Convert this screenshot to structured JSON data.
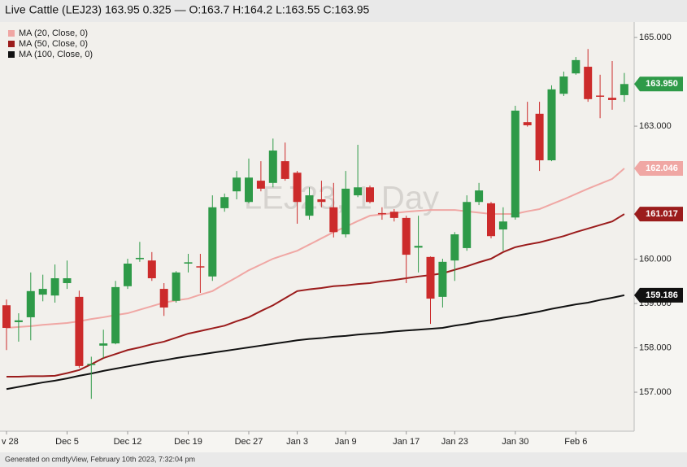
{
  "chart_data": {
    "type": "candlestick",
    "title": "Live Cattle (LEJ23) 163.95 0.325 — O:163.7 H:164.2 L:163.55 C:163.95",
    "watermark": "LEJ23, 1 Day",
    "footer": "Generated on cmdtyView, February 10th 2023, 7:32:04 pm",
    "categories": [
      "v 28",
      null,
      null,
      null,
      null,
      "Dec 5",
      null,
      null,
      null,
      null,
      "Dec 12",
      null,
      null,
      null,
      null,
      "Dec 19",
      null,
      null,
      null,
      null,
      "Dec 27",
      null,
      null,
      null,
      "Jan 3",
      null,
      null,
      null,
      "Jan 9",
      null,
      null,
      null,
      null,
      "Jan 17",
      null,
      null,
      null,
      "Jan 23",
      null,
      null,
      null,
      null,
      "Jan 30",
      null,
      null,
      null,
      null,
      "Feb 6",
      null,
      null,
      null,
      null
    ],
    "open": [
      158.96,
      158.58,
      158.69,
      159.2,
      159.18,
      159.46,
      159.15,
      157.62,
      158.05,
      158.1,
      159.39,
      160.0,
      159.97,
      159.33,
      159.06,
      159.9,
      159.84,
      159.61,
      161.15,
      161.53,
      161.29,
      161.77,
      161.72,
      162.21,
      161.95,
      160.98,
      161.35,
      161.17,
      160.56,
      161.44,
      161.62,
      161.04,
      161.07,
      160.93,
      160.26,
      160.05,
      159.15,
      159.97,
      160.25,
      161.29,
      161.26,
      160.67,
      160.94,
      163.09,
      163.28,
      162.23,
      163.73,
      164.19,
      164.34,
      163.69,
      163.64,
      163.7
    ],
    "high": [
      159.09,
      158.78,
      159.7,
      159.65,
      159.88,
      159.97,
      159.29,
      157.8,
      158.41,
      159.51,
      160.01,
      160.39,
      160.16,
      159.46,
      159.73,
      160.12,
      160.12,
      161.44,
      161.48,
      161.99,
      162.27,
      162.21,
      162.72,
      162.63,
      161.99,
      161.62,
      161.77,
      161.72,
      161.99,
      162.58,
      161.66,
      161.17,
      161.13,
      160.98,
      160.98,
      160.06,
      160.01,
      160.61,
      161.44,
      161.72,
      161.29,
      161.17,
      163.46,
      163.55,
      163.55,
      163.92,
      164.23,
      164.56,
      164.74,
      164.16,
      164.47,
      164.2
    ],
    "low": [
      157.95,
      158.14,
      158.17,
      159.05,
      159.02,
      159.33,
      157.55,
      156.85,
      157.77,
      158.08,
      159.33,
      159.94,
      159.51,
      158.72,
      159.02,
      159.7,
      159.24,
      159.51,
      161.07,
      161.35,
      161.26,
      161.53,
      161.62,
      161.77,
      160.8,
      160.89,
      161.17,
      160.49,
      160.49,
      161.4,
      161.26,
      160.89,
      160.85,
      159.46,
      159.7,
      158.54,
      158.91,
      159.51,
      160.19,
      161.22,
      160.47,
      160.19,
      160.89,
      162.99,
      161.99,
      162.21,
      163.68,
      164.16,
      163.55,
      163.18,
      163.37,
      163.55
    ],
    "close": [
      158.45,
      158.62,
      159.28,
      159.33,
      159.57,
      159.57,
      157.59,
      157.64,
      158.1,
      159.37,
      159.9,
      160.03,
      159.57,
      158.91,
      159.7,
      159.93,
      159.82,
      161.17,
      161.4,
      161.84,
      161.84,
      161.59,
      162.45,
      161.81,
      161.29,
      161.44,
      161.29,
      160.61,
      161.59,
      161.62,
      161.29,
      161.02,
      160.93,
      160.1,
      160.3,
      159.11,
      159.94,
      160.56,
      161.29,
      161.55,
      160.52,
      160.85,
      163.35,
      163.02,
      162.23,
      163.83,
      164.12,
      164.49,
      163.61,
      163.67,
      163.59,
      163.95
    ],
    "close_label": "163.950",
    "up_color": "#2e9a48",
    "down_color": "#cc2b2b",
    "ylim": [
      156.12,
      165.35
    ],
    "yticks": [
      {
        "value": 157,
        "label": "157.000"
      },
      {
        "value": 158,
        "label": "158.000"
      },
      {
        "value": 159,
        "label": "159.000"
      },
      {
        "value": 160,
        "label": "160.000"
      },
      {
        "value": 163,
        "label": "163.000"
      },
      {
        "value": 165,
        "label": "165.000"
      }
    ],
    "legend": "top-left",
    "series": [
      {
        "name": "MA (20, Close, 0)",
        "color": "#f0a7a4",
        "last_label": "162.046",
        "values": [
          158.45,
          158.47,
          158.49,
          158.52,
          158.54,
          158.56,
          158.6,
          158.65,
          158.69,
          158.74,
          158.78,
          158.86,
          158.94,
          159.02,
          159.07,
          159.11,
          159.2,
          159.28,
          159.44,
          159.59,
          159.75,
          159.88,
          160.01,
          160.1,
          160.19,
          160.33,
          160.47,
          160.61,
          160.73,
          160.86,
          160.98,
          161.01,
          161.04,
          161.07,
          161.09,
          161.11,
          161.11,
          161.11,
          161.08,
          161.05,
          161.02,
          161.02,
          161.02,
          161.08,
          161.13,
          161.24,
          161.35,
          161.47,
          161.59,
          161.7,
          161.81,
          162.046
        ]
      },
      {
        "name": "MA (50, Close, 0)",
        "color": "#9b1c1c",
        "last_label": "161.017",
        "values": [
          157.35,
          157.35,
          157.36,
          157.36,
          157.37,
          157.43,
          157.5,
          157.63,
          157.77,
          157.86,
          157.95,
          158.01,
          158.08,
          158.14,
          158.23,
          158.32,
          158.38,
          158.44,
          158.5,
          158.6,
          158.69,
          158.83,
          158.96,
          159.12,
          159.28,
          159.32,
          159.35,
          159.39,
          159.41,
          159.44,
          159.46,
          159.5,
          159.53,
          159.57,
          159.61,
          159.64,
          159.68,
          159.76,
          159.84,
          159.93,
          160.01,
          160.16,
          160.27,
          160.33,
          160.38,
          160.45,
          160.52,
          160.61,
          160.69,
          160.77,
          160.85,
          161.017
        ]
      },
      {
        "name": "MA (100, Close, 0)",
        "color": "#111111",
        "last_label": "159.186",
        "values": [
          157.07,
          157.12,
          157.17,
          157.22,
          157.26,
          157.31,
          157.37,
          157.42,
          157.48,
          157.53,
          157.58,
          157.63,
          157.68,
          157.72,
          157.77,
          157.81,
          157.85,
          157.89,
          157.93,
          157.97,
          158.01,
          158.05,
          158.09,
          158.13,
          158.17,
          158.2,
          158.22,
          158.25,
          158.27,
          158.3,
          158.32,
          158.34,
          158.37,
          158.39,
          158.41,
          158.43,
          158.45,
          158.5,
          158.54,
          158.59,
          158.63,
          158.68,
          158.72,
          158.77,
          158.82,
          158.88,
          158.93,
          158.98,
          159.02,
          159.08,
          159.13,
          159.186
        ]
      }
    ]
  }
}
